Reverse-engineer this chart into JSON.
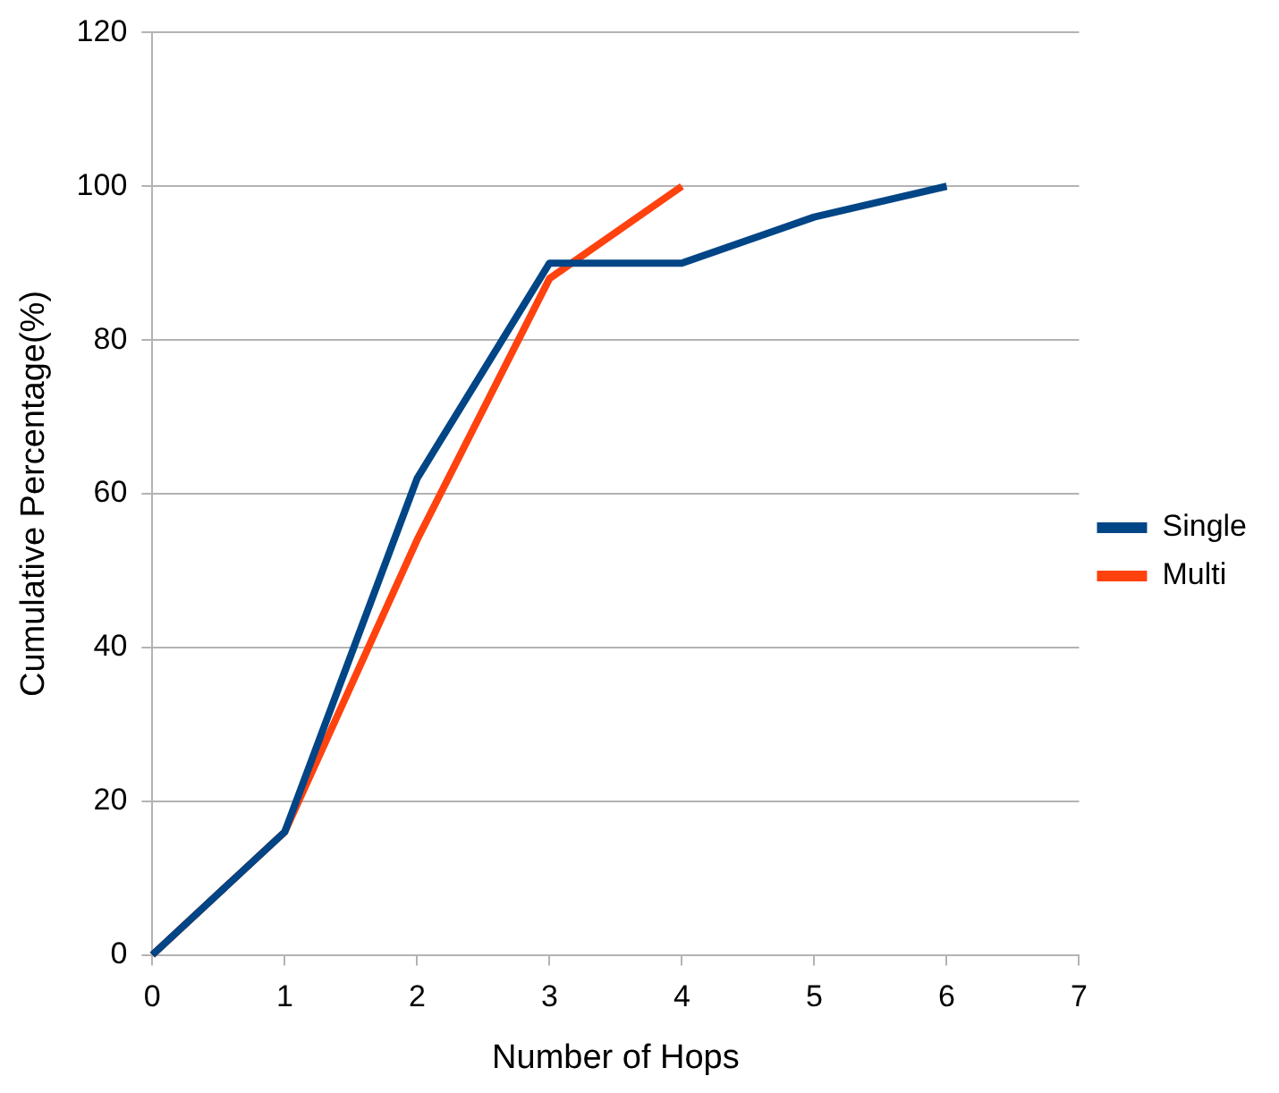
{
  "chart_data": {
    "type": "line",
    "xlabel": "Number of Hops",
    "ylabel": "Cumulative Percentage(%)",
    "series": [
      {
        "name": "Single",
        "color": "#004586",
        "x": [
          0,
          1,
          2,
          3,
          4,
          5,
          6
        ],
        "values": [
          0,
          16,
          62,
          90,
          90,
          96,
          100
        ]
      },
      {
        "name": "Multi",
        "color": "#ff420e",
        "x": [
          0,
          1,
          2,
          3,
          4
        ],
        "values": [
          0,
          16,
          54,
          88,
          100
        ]
      }
    ],
    "xlim": [
      0,
      7
    ],
    "xticks": [
      0,
      1,
      2,
      3,
      4,
      5,
      6,
      7
    ],
    "ylim": [
      0,
      120
    ],
    "yticks": [
      0,
      20,
      40,
      60,
      80,
      100,
      120
    ],
    "grid": "y",
    "legend": "right",
    "marker": "none",
    "line_style": "solid"
  }
}
